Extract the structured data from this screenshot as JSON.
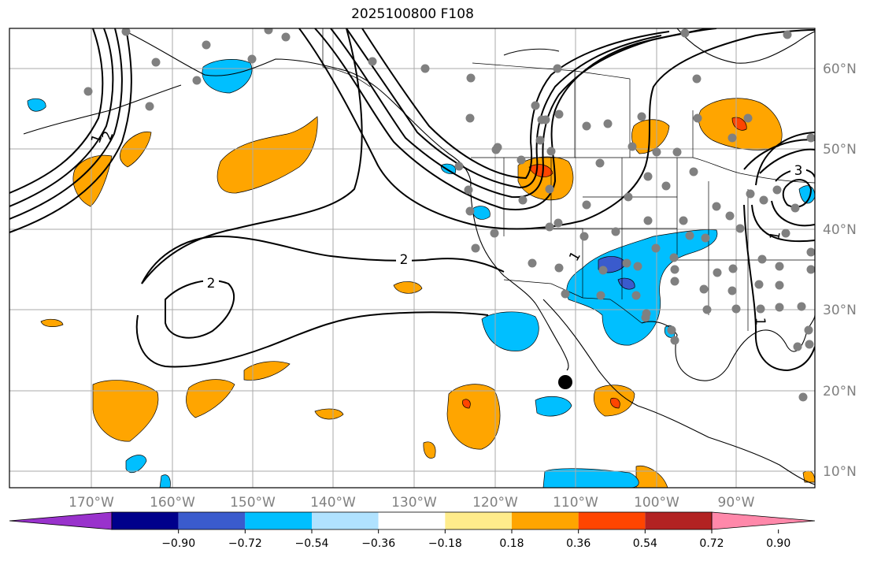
{
  "title": "2025100800 F108",
  "map": {
    "lon_labels": [
      "170°W",
      "160°W",
      "150°W",
      "140°W",
      "130°W",
      "120°W",
      "110°W",
      "100°W",
      "90°W"
    ],
    "lat_labels": [
      "60°N",
      "50°N",
      "40°N",
      "30°N",
      "20°N",
      "10°N"
    ],
    "contour_labels": [
      "2",
      "2",
      "3",
      "1",
      "1",
      "1",
      "1",
      "2"
    ],
    "gridline_color": "#aaaaaa",
    "station_color": "#808080",
    "marker_color": "#000000"
  },
  "colorbar": {
    "ticks": [
      "−0.90",
      "−0.72",
      "−0.54",
      "−0.36",
      "−0.18",
      "0.18",
      "0.36",
      "0.54",
      "0.72",
      "0.90"
    ],
    "colors": [
      "#9932cc",
      "#00008b",
      "#3a5bcd",
      "#00bfff",
      "#b0e2ff",
      "#ffffff",
      "#ffec8b",
      "#ffa500",
      "#ff4500",
      "#b22222",
      "#ff88aa"
    ]
  }
}
